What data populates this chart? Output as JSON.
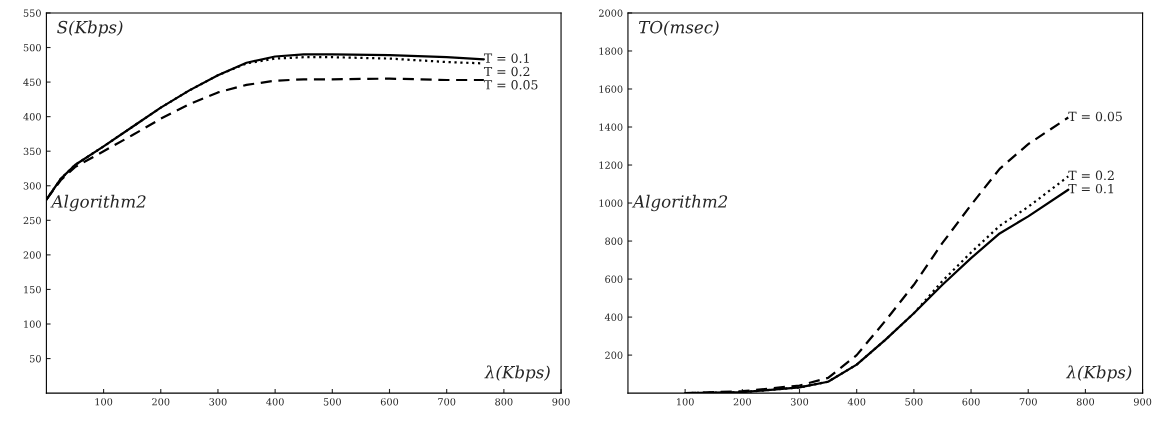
{
  "chart_data": [
    {
      "type": "line",
      "xlabel": "λ(Kbps)",
      "ylabel": "S(Kbps)",
      "annotations": [
        "Algorithm2"
      ],
      "xlim": [
        0,
        900
      ],
      "ylim": [
        0,
        550
      ],
      "xticks": [
        100,
        200,
        300,
        400,
        500,
        600,
        700,
        800,
        900
      ],
      "yticks": [
        50,
        100,
        150,
        200,
        250,
        300,
        350,
        400,
        450,
        500,
        550
      ],
      "grid": false,
      "legend": false,
      "series": [
        {
          "name": "T = 0.1",
          "color": "#000000",
          "line_style": "solid",
          "x": [
            0,
            25,
            50,
            100,
            150,
            200,
            250,
            300,
            350,
            400,
            450,
            500,
            600,
            700,
            765
          ],
          "values": [
            280,
            310,
            330,
            357,
            385,
            413,
            438,
            460,
            478,
            487,
            490,
            490,
            489,
            486,
            483
          ]
        },
        {
          "name": "T = 0.2",
          "color": "#000000",
          "line_style": "dotted",
          "x": [
            0,
            25,
            50,
            100,
            150,
            200,
            250,
            300,
            350,
            400,
            450,
            500,
            600,
            700,
            765
          ],
          "values": [
            280,
            310,
            330,
            357,
            385,
            413,
            438,
            460,
            477,
            484,
            486,
            486,
            484,
            479,
            477
          ]
        },
        {
          "name": "T = 0.05",
          "color": "#000000",
          "line_style": "dashed",
          "x": [
            0,
            25,
            50,
            100,
            150,
            200,
            250,
            300,
            350,
            400,
            450,
            500,
            600,
            700,
            765
          ],
          "values": [
            280,
            308,
            327,
            350,
            373,
            397,
            418,
            435,
            446,
            452,
            454,
            454,
            455,
            453,
            453
          ]
        }
      ]
    },
    {
      "type": "line",
      "xlabel": "λ(Kbps)",
      "ylabel": "TO(msec)",
      "annotations": [
        "Algorithm2"
      ],
      "xlim": [
        0,
        900
      ],
      "ylim": [
        0,
        2000
      ],
      "xticks": [
        100,
        200,
        300,
        400,
        500,
        600,
        700,
        800,
        900
      ],
      "yticks": [
        200,
        400,
        600,
        800,
        1000,
        1200,
        1400,
        1600,
        1800,
        2000
      ],
      "grid": false,
      "legend": false,
      "series": [
        {
          "name": "T = 0.05",
          "color": "#000000",
          "line_style": "dashed",
          "x": [
            100,
            200,
            300,
            350,
            400,
            450,
            500,
            550,
            600,
            650,
            700,
            770
          ],
          "values": [
            0,
            10,
            40,
            80,
            200,
            380,
            570,
            790,
            990,
            1180,
            1310,
            1450
          ]
        },
        {
          "name": "T = 0.2",
          "color": "#000000",
          "line_style": "dotted",
          "x": [
            100,
            200,
            300,
            350,
            400,
            450,
            500,
            550,
            600,
            650,
            700,
            770
          ],
          "values": [
            0,
            5,
            30,
            60,
            150,
            280,
            420,
            590,
            740,
            880,
            980,
            1140
          ]
        },
        {
          "name": "T = 0.1",
          "color": "#000000",
          "line_style": "solid",
          "x": [
            100,
            200,
            300,
            350,
            400,
            450,
            500,
            550,
            600,
            650,
            700,
            770
          ],
          "values": [
            0,
            5,
            30,
            60,
            150,
            280,
            420,
            570,
            710,
            840,
            930,
            1070
          ]
        }
      ]
    }
  ]
}
